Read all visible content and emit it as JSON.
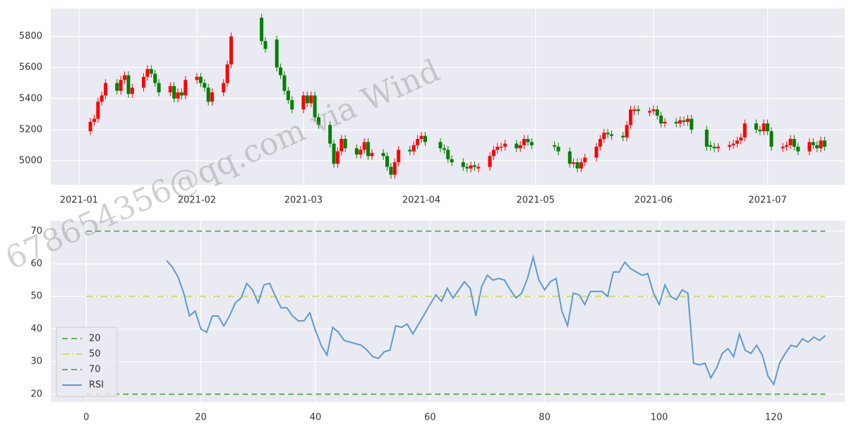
{
  "watermark": "678654356@qq.com via Wind",
  "chart_data": [
    {
      "type": "candlestick",
      "x": [
        4,
        5,
        6,
        7,
        8,
        11,
        12,
        13,
        14,
        15,
        18,
        19,
        20,
        21,
        22,
        25,
        26,
        27,
        28,
        29,
        32,
        33,
        34,
        35,
        36,
        39,
        40,
        41,
        49,
        50,
        53,
        54,
        55,
        56,
        57,
        60,
        61,
        62,
        63,
        64,
        67,
        68,
        69,
        70,
        71,
        74,
        75,
        76,
        77,
        78,
        81,
        82,
        83,
        84,
        85,
        88,
        89,
        90,
        91,
        92,
        96,
        97,
        98,
        99,
        102,
        103,
        104,
        105,
        106,
        109,
        110,
        111,
        112,
        113,
        116,
        117,
        118,
        119,
        120,
        126,
        127,
        130,
        131,
        132,
        133,
        134,
        137,
        138,
        139,
        140,
        141,
        144,
        145,
        146,
        147,
        148,
        151,
        152,
        153,
        154,
        155,
        158,
        159,
        160,
        161,
        162,
        166,
        167,
        168,
        169,
        172,
        173,
        174,
        175,
        176,
        179,
        180,
        181,
        182,
        183,
        186,
        187,
        188,
        189,
        190,
        193,
        194,
        195,
        196,
        197
      ],
      "open": [
        5190,
        5250,
        5270,
        5380,
        5420,
        5500,
        5450,
        5520,
        5550,
        5430,
        5470,
        5540,
        5590,
        5560,
        5500,
        5440,
        5480,
        5400,
        5440,
        5420,
        5520,
        5540,
        5500,
        5470,
        5380,
        5440,
        5500,
        5620,
        5920,
        5770,
        5780,
        5600,
        5550,
        5450,
        5390,
        5330,
        5420,
        5370,
        5420,
        5280,
        5230,
        5110,
        4980,
        5060,
        5140,
        5080,
        5040,
        5070,
        5120,
        5030,
        5050,
        5030,
        4960,
        4910,
        4990,
        5070,
        5060,
        5100,
        5140,
        5160,
        5120,
        5080,
        5070,
        5010,
        4990,
        4960,
        4950,
        4970,
        4950,
        4960,
        5030,
        5070,
        5085,
        5090,
        5110,
        5080,
        5100,
        5140,
        5120,
        5100,
        5090,
        5060,
        4980,
        4990,
        4950,
        4990,
        5020,
        5090,
        5140,
        5180,
        5170,
        5160,
        5150,
        5230,
        5320,
        5330,
        5310,
        5320,
        5330,
        5290,
        5240,
        5250,
        5240,
        5260,
        5250,
        5270,
        5200,
        5100,
        5090,
        5080,
        5090,
        5100,
        5110,
        5130,
        5150,
        5240,
        5200,
        5190,
        5240,
        5190,
        5080,
        5090,
        5100,
        5140,
        5090,
        5060,
        5120,
        5100,
        5080,
        5130
      ],
      "high": [
        5275,
        5295,
        5405,
        5445,
        5525,
        5525,
        5545,
        5575,
        5575,
        5495,
        5565,
        5615,
        5615,
        5585,
        5525,
        5505,
        5505,
        5465,
        5465,
        5545,
        5565,
        5565,
        5525,
        5495,
        5465,
        5525,
        5645,
        5825,
        5945,
        5795,
        5805,
        5625,
        5575,
        5475,
        5415,
        5445,
        5445,
        5445,
        5445,
        5305,
        5255,
        5135,
        5085,
        5165,
        5165,
        5105,
        5095,
        5145,
        5145,
        5075,
        5075,
        5055,
        4985,
        5015,
        5095,
        5095,
        5125,
        5165,
        5185,
        5185,
        5145,
        5105,
        5095,
        5035,
        5015,
        4985,
        4995,
        4995,
        4985,
        5055,
        5095,
        5115,
        5115,
        5135,
        5135,
        5125,
        5165,
        5165,
        5145,
        5125,
        5115,
        5085,
        5015,
        5015,
        5015,
        5045,
        5115,
        5165,
        5205,
        5205,
        5195,
        5185,
        5255,
        5355,
        5355,
        5355,
        5345,
        5355,
        5355,
        5315,
        5275,
        5275,
        5285,
        5285,
        5295,
        5295,
        5225,
        5125,
        5115,
        5115,
        5125,
        5135,
        5155,
        5175,
        5265,
        5265,
        5225,
        5265,
        5265,
        5215,
        5115,
        5125,
        5165,
        5165,
        5115,
        5145,
        5145,
        5125,
        5155,
        5155
      ],
      "low": [
        5165,
        5225,
        5245,
        5355,
        5395,
        5425,
        5425,
        5495,
        5405,
        5405,
        5445,
        5515,
        5535,
        5475,
        5415,
        5415,
        5375,
        5375,
        5395,
        5395,
        5495,
        5475,
        5445,
        5355,
        5355,
        5415,
        5475,
        5595,
        5745,
        5695,
        5575,
        5525,
        5425,
        5365,
        5305,
        5305,
        5345,
        5345,
        5255,
        5205,
        5085,
        4955,
        4955,
        5035,
        5055,
        5015,
        5015,
        5045,
        5005,
        5005,
        5005,
        4935,
        4885,
        4885,
        4965,
        5035,
        5035,
        5075,
        5115,
        5095,
        5055,
        5045,
        4985,
        4965,
        4935,
        4925,
        4925,
        4935,
        4925,
        4935,
        5005,
        5045,
        5060,
        5065,
        5055,
        5055,
        5075,
        5095,
        5075,
        5065,
        5035,
        4955,
        4955,
        4925,
        4925,
        4965,
        4995,
        5065,
        5115,
        5145,
        5135,
        5125,
        5125,
        5205,
        5295,
        5295,
        5285,
        5295,
        5265,
        5215,
        5215,
        5215,
        5215,
        5225,
        5225,
        5175,
        5065,
        5065,
        5055,
        5055,
        5065,
        5075,
        5085,
        5105,
        5125,
        5175,
        5165,
        5165,
        5165,
        5065,
        5055,
        5065,
        5075,
        5065,
        5035,
        5035,
        5075,
        5055,
        5055,
        5065
      ],
      "close": [
        5250,
        5270,
        5380,
        5420,
        5500,
        5450,
        5520,
        5550,
        5430,
        5470,
        5540,
        5590,
        5560,
        5500,
        5440,
        5480,
        5400,
        5440,
        5420,
        5520,
        5540,
        5500,
        5470,
        5380,
        5440,
        5500,
        5620,
        5800,
        5770,
        5720,
        5600,
        5550,
        5450,
        5390,
        5330,
        5420,
        5370,
        5420,
        5280,
        5230,
        5110,
        4980,
        5060,
        5140,
        5080,
        5040,
        5070,
        5120,
        5030,
        5050,
        5030,
        4960,
        4910,
        4990,
        5070,
        5060,
        5100,
        5140,
        5160,
        5120,
        5080,
        5070,
        5010,
        4990,
        4960,
        4950,
        4970,
        4960,
        4960,
        5030,
        5070,
        5090,
        5090,
        5110,
        5080,
        5100,
        5140,
        5120,
        5100,
        5090,
        5060,
        4980,
        4990,
        4950,
        4990,
        5020,
        5090,
        5140,
        5180,
        5170,
        5160,
        5150,
        5230,
        5330,
        5330,
        5320,
        5320,
        5330,
        5290,
        5240,
        5250,
        5240,
        5260,
        5250,
        5270,
        5200,
        5090,
        5090,
        5080,
        5090,
        5100,
        5110,
        5130,
        5150,
        5240,
        5200,
        5190,
        5240,
        5190,
        5090,
        5090,
        5100,
        5140,
        5090,
        5060,
        5120,
        5100,
        5080,
        5130,
        5090
      ],
      "up_color": "#ff0000",
      "down_color": "#008000",
      "xlim": [
        -6.4,
        202.3
      ],
      "xticks": [
        {
          "value": 1,
          "label": "2021-01"
        },
        {
          "value": 32,
          "label": "2021-02"
        },
        {
          "value": 60,
          "label": "2021-03"
        },
        {
          "value": 91,
          "label": "2021-04"
        },
        {
          "value": 121,
          "label": "2021-05"
        },
        {
          "value": 152,
          "label": "2021-06"
        },
        {
          "value": 182,
          "label": "2021-07"
        }
      ],
      "ylim": [
        4845,
        5980
      ],
      "yticks": [
        5000,
        5200,
        5400,
        5600,
        5800
      ],
      "grid": true
    },
    {
      "type": "line",
      "x": [
        0,
        1,
        2,
        3,
        4,
        5,
        6,
        7,
        8,
        9,
        10,
        11,
        12,
        13,
        14,
        15,
        16,
        17,
        18,
        19,
        20,
        21,
        22,
        23,
        24,
        25,
        26,
        27,
        28,
        29,
        30,
        31,
        32,
        33,
        34,
        35,
        36,
        37,
        38,
        39,
        40,
        41,
        42,
        43,
        44,
        45,
        46,
        47,
        48,
        49,
        50,
        51,
        52,
        53,
        54,
        55,
        56,
        57,
        58,
        59,
        60,
        61,
        62,
        63,
        64,
        65,
        66,
        67,
        68,
        69,
        70,
        71,
        72,
        73,
        74,
        75,
        76,
        77,
        78,
        79,
        80,
        81,
        82,
        83,
        84,
        85,
        86,
        87,
        88,
        89,
        90,
        91,
        92,
        93,
        94,
        95,
        96,
        97,
        98,
        99,
        100,
        101,
        102,
        103,
        104,
        105,
        106,
        107,
        108,
        109,
        110,
        111,
        112,
        113,
        114,
        115,
        116,
        117,
        118,
        119,
        120,
        121,
        122,
        123,
        124,
        125,
        126,
        127,
        128,
        129
      ],
      "series": [
        {
          "name": "20",
          "value": 20,
          "color": "#6ab05a",
          "style": "dashed"
        },
        {
          "name": "50",
          "value": 50,
          "color": "#d4dc6a",
          "style": "dashdot"
        },
        {
          "name": "70",
          "value": 70,
          "color": "#6ab05a",
          "style": "dashed"
        },
        {
          "name": "RSI",
          "color": "#5b9bcf",
          "style": "solid",
          "values": [
            null,
            null,
            null,
            null,
            null,
            null,
            null,
            null,
            null,
            null,
            null,
            null,
            null,
            null,
            61,
            59,
            56,
            51,
            44,
            45.5,
            40,
            39,
            44,
            44,
            41,
            44,
            48,
            49.5,
            54,
            52,
            48,
            53.5,
            54,
            50,
            46.5,
            46.5,
            44,
            42.5,
            42.5,
            45,
            39.5,
            35,
            32,
            40.5,
            39,
            36.5,
            36,
            35.5,
            35,
            33.5,
            31.5,
            31,
            33,
            33.5,
            41,
            40.5,
            41.5,
            38.5,
            41.5,
            44.5,
            47.5,
            50.5,
            48.5,
            52.5,
            49.5,
            52,
            54.5,
            52.5,
            44,
            53,
            56.5,
            55,
            55.5,
            55,
            52,
            49.5,
            51,
            55.5,
            62,
            55,
            52,
            54.5,
            55.5,
            45.5,
            41,
            51,
            50.5,
            47.5,
            51.5,
            51.5,
            51.5,
            50,
            57.5,
            57.5,
            60.5,
            58.5,
            57.5,
            56.5,
            57,
            51,
            47.5,
            53.5,
            50,
            49,
            52,
            51,
            29.5,
            29,
            29.5,
            25,
            28,
            32.5,
            34,
            31.5,
            38.5,
            33.5,
            32.5,
            35,
            32,
            25.5,
            23,
            29.5,
            32.5,
            35,
            34.5,
            37,
            36,
            37.5,
            36.5,
            38
          ]
        }
      ],
      "legend": "lower left",
      "xlim": [
        -6.2,
        132.4
      ],
      "xticks": [
        0,
        20,
        40,
        60,
        80,
        100,
        120
      ],
      "ylim": [
        17.6,
        73.2
      ],
      "yticks": [
        20,
        30,
        40,
        50,
        60,
        70
      ],
      "grid": true
    }
  ]
}
